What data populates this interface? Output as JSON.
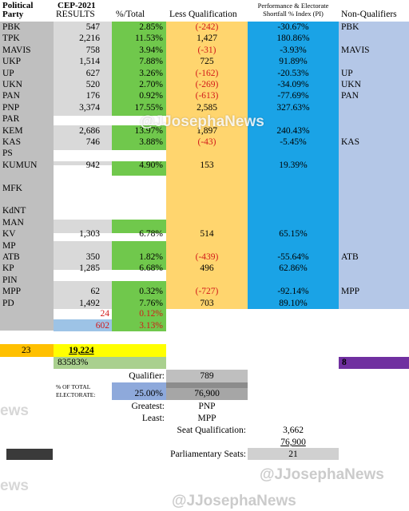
{
  "headers": {
    "party": "Political Party",
    "cep": "CEP-2021",
    "results": "RESULTS",
    "pct_total": "%/Total",
    "less_qualification": "Less Qualification",
    "pi": "Performance & Electorate Shortfall % Index (PI)",
    "non_qualifiers": "Non-Qualifiers"
  },
  "rows": [
    {
      "party": "PBK",
      "results": "547",
      "pct": "2.85%",
      "less": "(-242)",
      "less_neg": true,
      "pi": "-30.67%",
      "nq": "PBK"
    },
    {
      "party": "TPK",
      "results": "2,216",
      "pct": "11.53%",
      "less": "1,427",
      "less_neg": false,
      "pi": "180.86%",
      "nq": ""
    },
    {
      "party": "MAVIS",
      "results": "758",
      "pct": "3.94%",
      "less": "(-31)",
      "less_neg": true,
      "pi": "-3.93%",
      "nq": "MAVIS"
    },
    {
      "party": "UKP",
      "results": "1,514",
      "pct": "7.88%",
      "less": "725",
      "less_neg": false,
      "pi": "91.89%",
      "nq": ""
    },
    {
      "party": "UP",
      "results": "627",
      "pct": "3.26%",
      "less": "(-162)",
      "less_neg": true,
      "pi": "-20.53%",
      "nq": "UP"
    },
    {
      "party": "UKN",
      "results": "520",
      "pct": "2.70%",
      "less": "(-269)",
      "less_neg": true,
      "pi": "-34.09%",
      "nq": "UKN"
    },
    {
      "party": "PAN",
      "results": "176",
      "pct": "0.92%",
      "less": "(-613)",
      "less_neg": true,
      "pi": "-77.69%",
      "nq": "PAN"
    },
    {
      "party": "PNP",
      "results": "3,374",
      "pct": "17.55%",
      "less": "2,585",
      "less_neg": false,
      "pi": "327.63%",
      "nq": ""
    },
    {
      "party": "PAR",
      "results": "",
      "pct": "",
      "less": "",
      "less_neg": false,
      "pi": "",
      "nq": ""
    },
    {
      "party": "KEM",
      "results": "2,686",
      "pct": "13.97%",
      "less": "1,897",
      "less_neg": false,
      "pi": "240.43%",
      "nq": ""
    },
    {
      "party": "KAS",
      "results": "746",
      "pct": "3.88%",
      "less": "(-43)",
      "less_neg": true,
      "pi": "-5.45%",
      "nq": "KAS"
    },
    {
      "party": "PS",
      "results": "",
      "pct": "",
      "less": "",
      "less_neg": false,
      "pi": "",
      "nq": ""
    },
    {
      "party": "KUMUN",
      "results": "942",
      "pct": "4.90%",
      "less": "153",
      "less_neg": false,
      "pi": "19.39%",
      "nq": ""
    },
    {
      "party": "",
      "results": "",
      "pct": "",
      "less": "",
      "less_neg": false,
      "pi": "",
      "nq": ""
    },
    {
      "party": "MFK",
      "results": "",
      "pct": "",
      "less": "",
      "less_neg": false,
      "pi": "",
      "nq": ""
    },
    {
      "party": "",
      "results": "",
      "pct": "",
      "less": "",
      "less_neg": false,
      "pi": "",
      "nq": ""
    },
    {
      "party": "KdNT",
      "results": "",
      "pct": "",
      "less": "",
      "less_neg": false,
      "pi": "",
      "nq": ""
    },
    {
      "party": "MAN",
      "results": "",
      "pct": "",
      "less": "",
      "less_neg": false,
      "pi": "",
      "nq": ""
    },
    {
      "party": "KV",
      "results": "1,303",
      "pct": "6.78%",
      "less": "514",
      "less_neg": false,
      "pi": "65.15%",
      "nq": ""
    },
    {
      "party": "MP",
      "results": "",
      "pct": "",
      "less": "",
      "less_neg": false,
      "pi": "",
      "nq": ""
    },
    {
      "party": "ATB",
      "results": "350",
      "pct": "1.82%",
      "less": "(-439)",
      "less_neg": true,
      "pi": "-55.64%",
      "nq": "ATB"
    },
    {
      "party": "KP",
      "results": "1,285",
      "pct": "6.68%",
      "less": "496",
      "less_neg": false,
      "pi": "62.86%",
      "nq": ""
    },
    {
      "party": "PIN",
      "results": "",
      "pct": "",
      "less": "",
      "less_neg": false,
      "pi": "",
      "nq": ""
    },
    {
      "party": "MPP",
      "results": "62",
      "pct": "0.32%",
      "less": "(-727)",
      "less_neg": true,
      "pi": "-92.14%",
      "nq": "MPP"
    },
    {
      "party": "PD",
      "results": "1,492",
      "pct": "7.76%",
      "less": "703",
      "less_neg": false,
      "pi": "89.10%",
      "nq": ""
    }
  ],
  "extra_rows": [
    {
      "results": "24",
      "pct": "0.12%"
    },
    {
      "results": "602",
      "pct": "3.13%"
    }
  ],
  "totals": {
    "party_count": "23",
    "results_total": "19,224",
    "turnout": "83583%",
    "non_qualifier_count": "8"
  },
  "summary": {
    "qualifier_label": "Qualifier:",
    "qualifier_value": "789",
    "pct_electorate_label": "% OF TOTAL ELECTORATE:",
    "pct_electorate_value": "25.00%",
    "electorate_value": "76,900",
    "greatest_label": "Greatest:",
    "greatest_value": "PNP",
    "least_label": "Least:",
    "least_value": "MPP",
    "seat_qual_label": "Seat Qualification:",
    "seat_qual_value": "3,662",
    "seat_electorate": "76,900",
    "parl_seats_label": "Parliamentary Seats:",
    "parl_seats_value": "21"
  },
  "watermarks": {
    "main": "@JJosephaNews",
    "partial": "ews"
  },
  "colors": {
    "party_col": "#bfbfbf",
    "results_col": "#d9d9d9",
    "pct_col": "#70c84c",
    "less_col": "#ffd56e",
    "pi_col": "#1aa3e6",
    "nq_col": "#b4c7e7",
    "total_yellow": "#ffff00",
    "count_orange": "#ffc000",
    "nq_purple": "#7030a0"
  }
}
